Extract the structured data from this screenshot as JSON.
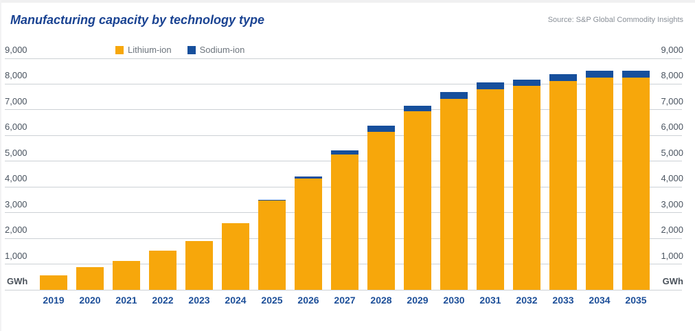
{
  "header": {
    "title": "Manufacturing capacity by technology type",
    "source": "Source: S&P Global Commodity Insights"
  },
  "chart_data": {
    "type": "bar",
    "stacked": true,
    "title": "Manufacturing capacity by technology type",
    "unit": "GWh",
    "categories": [
      "2019",
      "2020",
      "2021",
      "2022",
      "2023",
      "2024",
      "2025",
      "2026",
      "2027",
      "2028",
      "2029",
      "2030",
      "2031",
      "2032",
      "2033",
      "2034",
      "2035"
    ],
    "series": [
      {
        "name": "Lithium-ion",
        "color": "#f7a70b",
        "values": [
          550,
          870,
          1130,
          1530,
          1890,
          2600,
          3460,
          4330,
          5260,
          6150,
          6950,
          7420,
          7800,
          7930,
          8120,
          8240,
          8260
        ]
      },
      {
        "name": "Sodium-ion",
        "color": "#164f9c",
        "values": [
          0,
          0,
          0,
          0,
          0,
          0,
          40,
          80,
          150,
          240,
          200,
          270,
          270,
          250,
          280,
          280,
          270
        ]
      }
    ],
    "ylim": [
      0,
      9000
    ],
    "ytick_interval": 1000,
    "ytick_labels": [
      "1,000",
      "2,000",
      "3,000",
      "4,000",
      "5,000",
      "6,000",
      "7,000",
      "8,000",
      "9,000"
    ],
    "legend_position": "top-center",
    "grid": "horizontal",
    "axis_label_sides": "both"
  }
}
